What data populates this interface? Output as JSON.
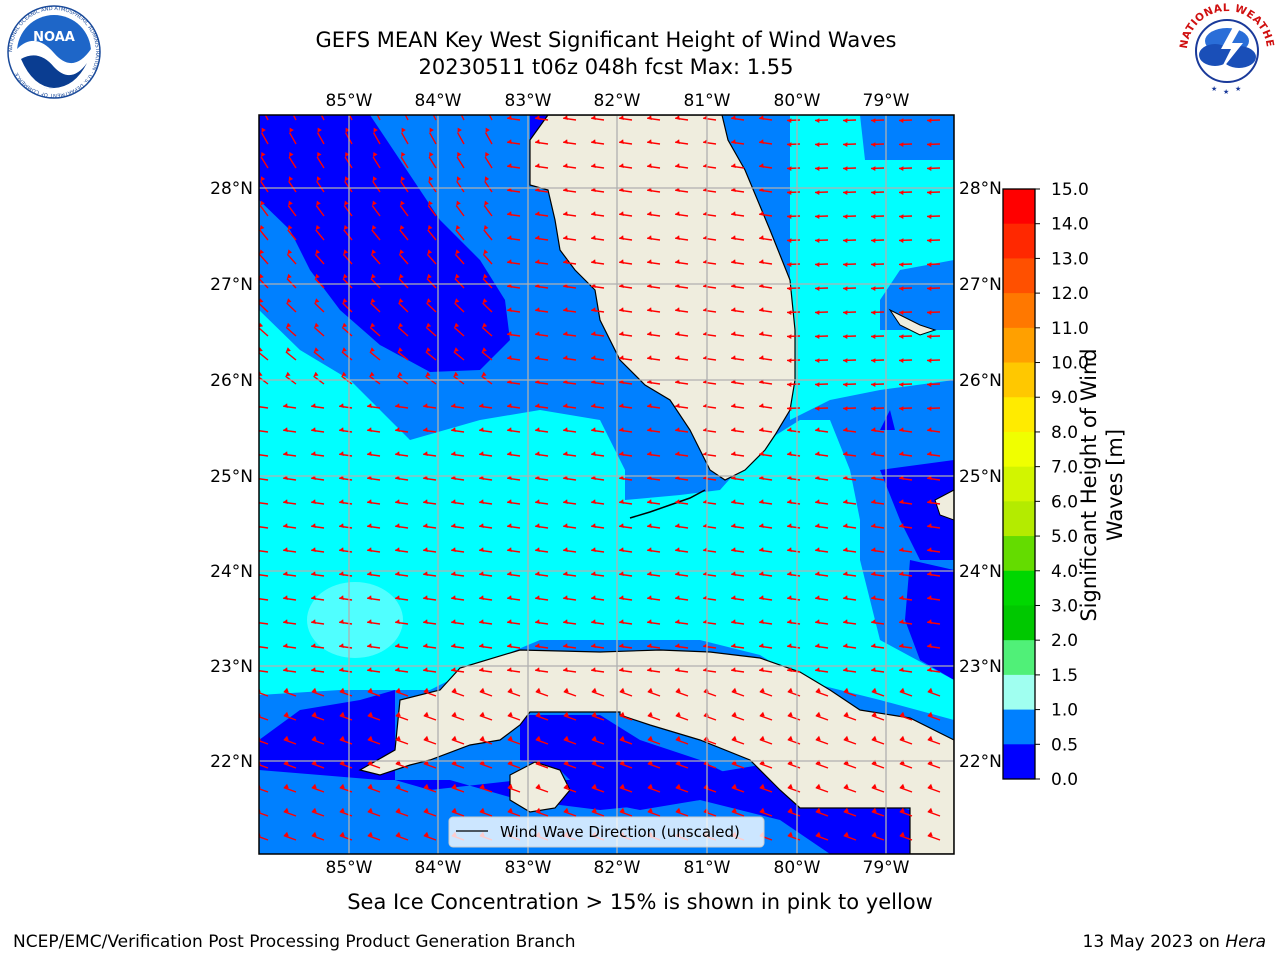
{
  "header": {
    "title_line1": "GEFS MEAN Key West Significant Height of Wind Waves",
    "title_line2": "20230511 t06z 048h fcst   Max: 1.55"
  },
  "map": {
    "lon_labels": [
      "85°W",
      "84°W",
      "83°W",
      "82°W",
      "81°W",
      "80°W",
      "79°W"
    ],
    "lat_labels": [
      "28°N",
      "27°N",
      "26°N",
      "25°N",
      "24°N",
      "23°N",
      "22°N"
    ],
    "legend_label": "Wind Wave Direction (unscaled)",
    "land_color": "#efedde",
    "arrow_color": "#ff0000"
  },
  "colorbar": {
    "title": "Significant Height of Wind Waves [m]",
    "ticks": [
      "15.0",
      "14.0",
      "13.0",
      "12.0",
      "11.0",
      "10.0",
      "9.0",
      "8.0",
      "7.0",
      "6.0",
      "5.0",
      "4.0",
      "3.0",
      "2.0",
      "1.5",
      "1.0",
      "0.5",
      "0.0"
    ],
    "colors_top_to_bottom": [
      "#ff0000",
      "#ff2800",
      "#ff5000",
      "#ff7800",
      "#ffa000",
      "#ffc800",
      "#ffeb00",
      "#f0ff00",
      "#d2f500",
      "#b4eb00",
      "#64dc00",
      "#00d700",
      "#00c800",
      "#50f078",
      "#a0fff0",
      "#50ffff",
      "#00ffff",
      "#0080ff",
      "#0000ff"
    ]
  },
  "note": "Sea Ice Concentration > 15% is shown in pink to yellow",
  "footer": {
    "left": "NCEP/EMC/Verification Post Processing Product Generation Branch",
    "right_date": "13 May 2023 on ",
    "right_host": "Hera"
  },
  "logos": {
    "noaa_text": "NOAA",
    "noaa_ring_text": "NATIONAL OCEANIC AND ATMOSPHERIC ADMINISTRATION · U.S. DEPARTMENT OF COMMERCE",
    "nws_ring_text": "NATIONAL WEATHER SERVICE"
  }
}
